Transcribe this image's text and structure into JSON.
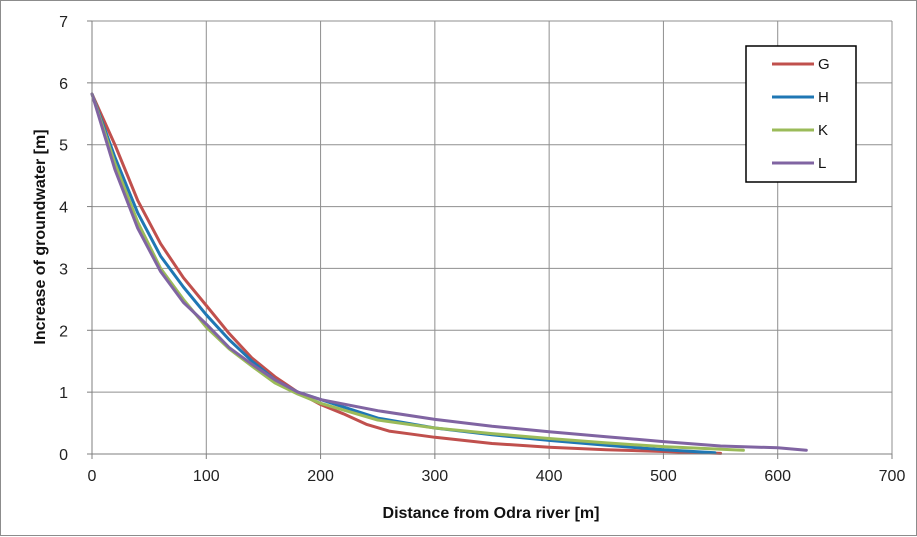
{
  "chart_data": {
    "type": "line",
    "title": "",
    "xlabel": "Distance from Odra river [m]",
    "ylabel": "Increase of groundwater [m]",
    "xlim": [
      0,
      700
    ],
    "ylim": [
      0,
      7
    ],
    "xticks": [
      0,
      100,
      200,
      300,
      400,
      500,
      600,
      700
    ],
    "yticks": [
      0,
      1,
      2,
      3,
      4,
      5,
      6,
      7
    ],
    "grid": true,
    "legend_position": "top-right",
    "series": [
      {
        "name": "G",
        "color": "#C0504D",
        "x": [
          0,
          20,
          40,
          60,
          80,
          100,
          120,
          140,
          160,
          180,
          200,
          220,
          240,
          260,
          280,
          300,
          350,
          400,
          450,
          500,
          550
        ],
        "y": [
          5.82,
          5.0,
          4.1,
          3.4,
          2.85,
          2.4,
          1.95,
          1.55,
          1.25,
          1.0,
          0.8,
          0.65,
          0.48,
          0.37,
          0.32,
          0.27,
          0.17,
          0.11,
          0.07,
          0.04,
          0.01
        ]
      },
      {
        "name": "H",
        "color": "#1F77B4",
        "x": [
          0,
          20,
          40,
          60,
          80,
          100,
          120,
          140,
          160,
          180,
          200,
          250,
          300,
          350,
          400,
          450,
          500,
          545
        ],
        "y": [
          5.82,
          4.8,
          3.9,
          3.2,
          2.7,
          2.25,
          1.85,
          1.5,
          1.2,
          1.0,
          0.88,
          0.58,
          0.42,
          0.31,
          0.22,
          0.14,
          0.07,
          0.02
        ]
      },
      {
        "name": "K",
        "color": "#9BBB59",
        "x": [
          0,
          20,
          40,
          60,
          80,
          100,
          120,
          140,
          160,
          180,
          200,
          250,
          300,
          350,
          400,
          450,
          500,
          570
        ],
        "y": [
          5.82,
          4.7,
          3.75,
          3.0,
          2.5,
          2.05,
          1.7,
          1.42,
          1.15,
          0.97,
          0.82,
          0.55,
          0.42,
          0.33,
          0.25,
          0.18,
          0.12,
          0.06
        ]
      },
      {
        "name": "L",
        "color": "#8064A2",
        "x": [
          0,
          20,
          40,
          60,
          80,
          100,
          120,
          140,
          160,
          180,
          200,
          250,
          300,
          350,
          400,
          450,
          500,
          550,
          600,
          625
        ],
        "y": [
          5.82,
          4.6,
          3.65,
          2.95,
          2.45,
          2.1,
          1.72,
          1.45,
          1.2,
          1.0,
          0.88,
          0.7,
          0.56,
          0.45,
          0.36,
          0.28,
          0.2,
          0.13,
          0.1,
          0.06
        ]
      }
    ]
  }
}
